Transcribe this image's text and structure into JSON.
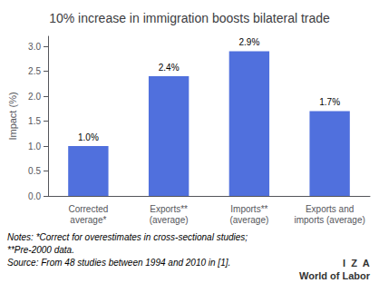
{
  "chart_data": {
    "type": "bar",
    "title": "10% increase in immigration boosts bilateral trade",
    "categories": [
      "Corrected\naverage*",
      "Exports**\n(average)",
      "Imports**\n(average)",
      "Exports and\nimports (average)"
    ],
    "values": [
      1.0,
      2.4,
      2.9,
      1.7
    ],
    "value_labels": [
      "1.0%",
      "2.4%",
      "2.9%",
      "1.7%"
    ],
    "data_labels": true,
    "ylabel": "Impact (%)",
    "ylim": [
      0,
      3.2
    ],
    "yticks": [
      {
        "value": 0,
        "label": "0.0"
      },
      0.5,
      {
        "value": 1,
        "label": "1.0"
      },
      1.5,
      {
        "value": 2,
        "label": "2.0"
      },
      2.5,
      {
        "value": 3,
        "label": "3.0"
      }
    ],
    "grid": false,
    "annotations": [
      "Notes: *Correct for overestimates in cross-sectional studies;",
      "**Pre-2000 data.",
      "Source: From 48 studies between 1994 and 2010 in [1].",
      "I  Z  A",
      "World of Labor"
    ]
  }
}
